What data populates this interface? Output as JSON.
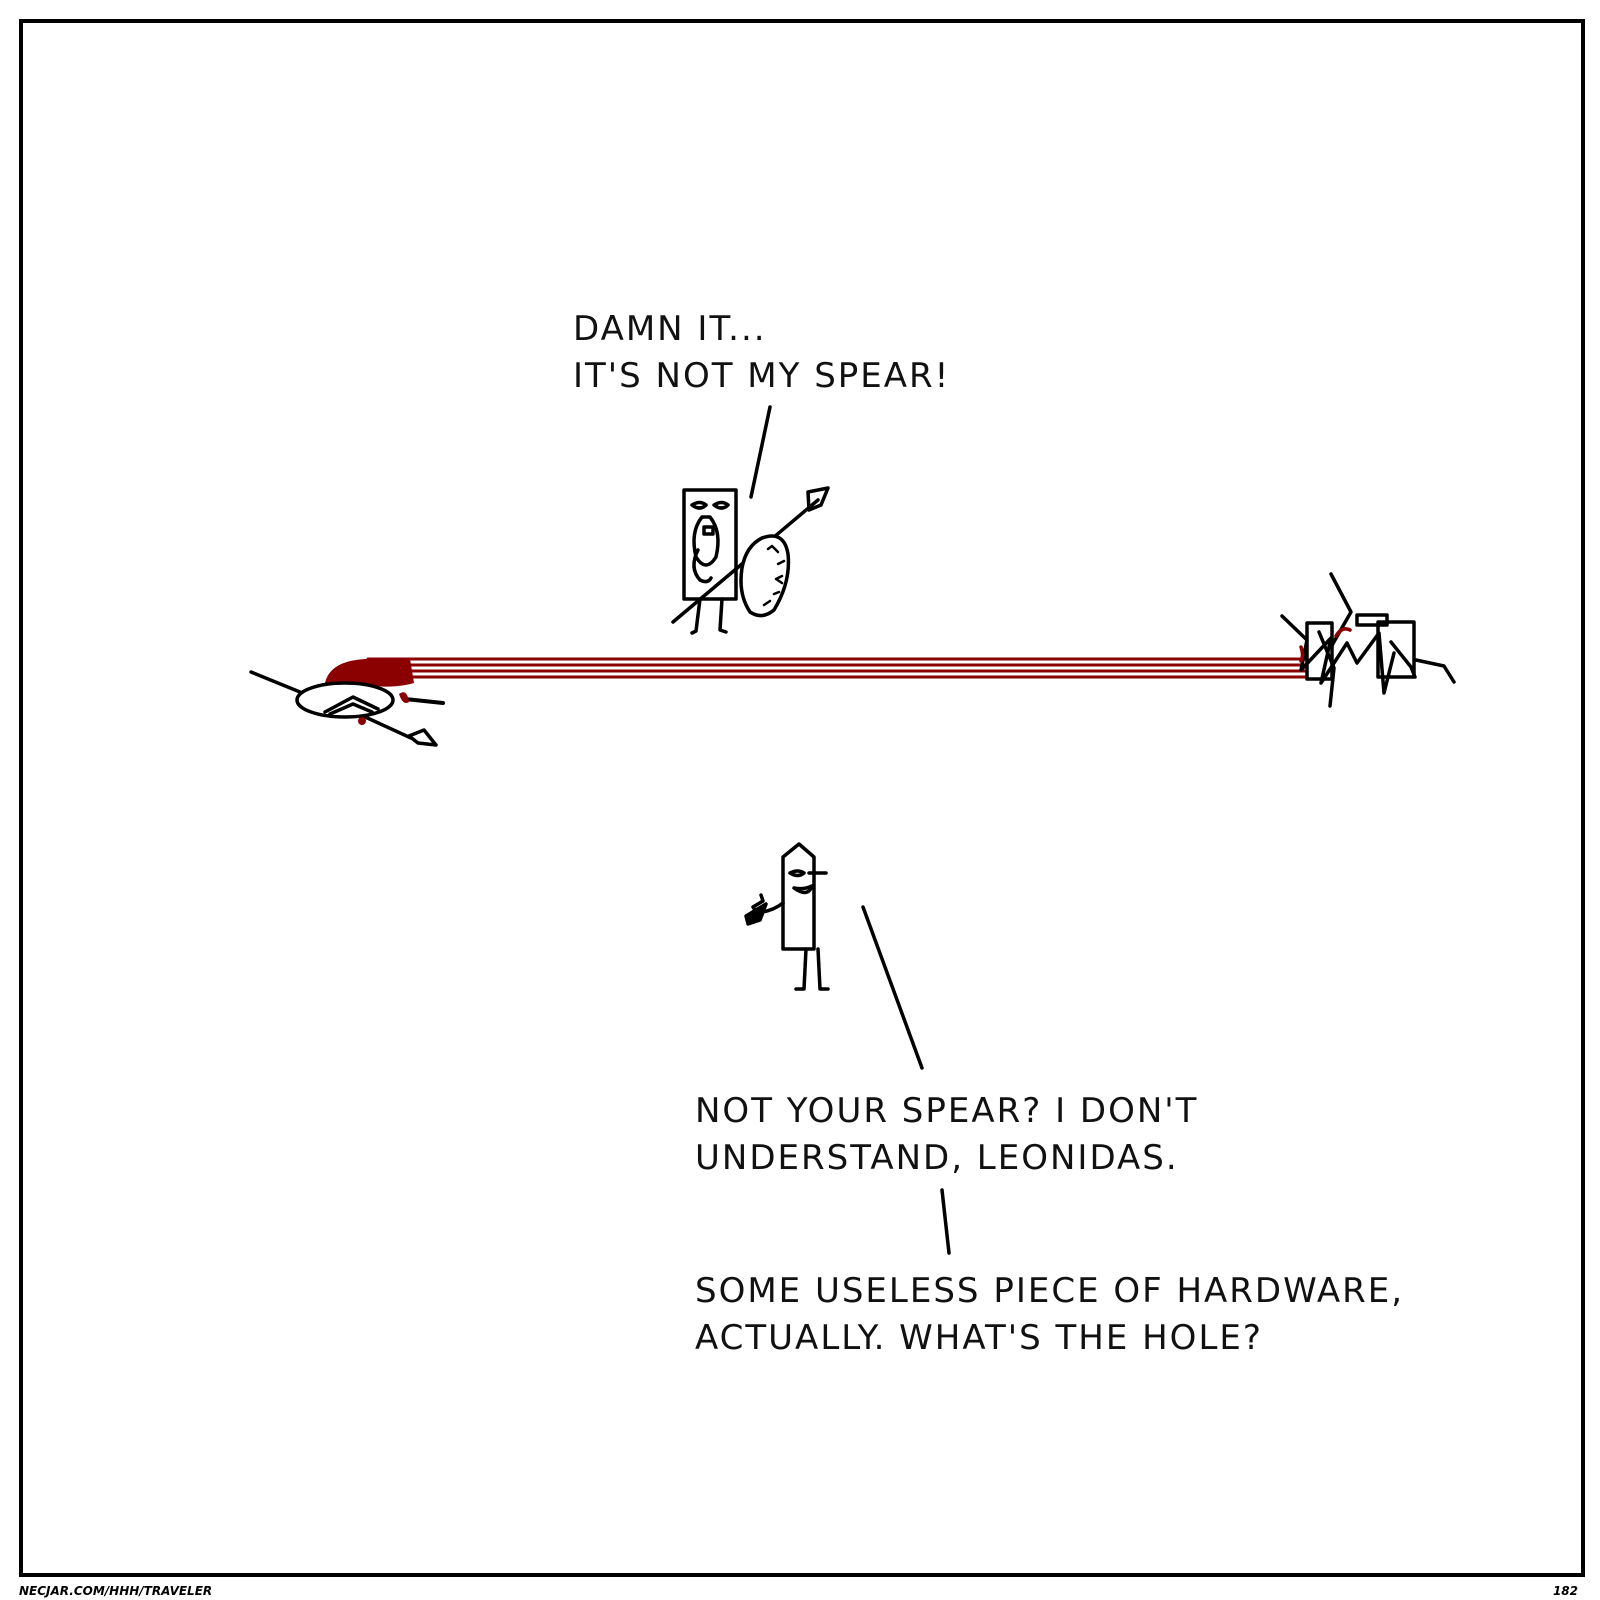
{
  "comic": {
    "dialogue": [
      {
        "lines": [
          "DAMN IT...",
          "IT'S NOT MY SPEAR!"
        ]
      },
      {
        "lines": [
          "NOT YOUR SPEAR? I DON'T",
          "UNDERSTAND, LEONIDAS."
        ]
      },
      {
        "lines": [
          "SOME USELESS PIECE OF HARDWARE,",
          "ACTUALLY. WHAT'S THE HOLE?"
        ]
      }
    ],
    "footer": {
      "url": "NECJAR.COM/HHH/TRAVELER",
      "page_number": "182"
    },
    "colors": {
      "ink": "#000000",
      "blood": "#8b0000",
      "background": "#ffffff"
    }
  }
}
